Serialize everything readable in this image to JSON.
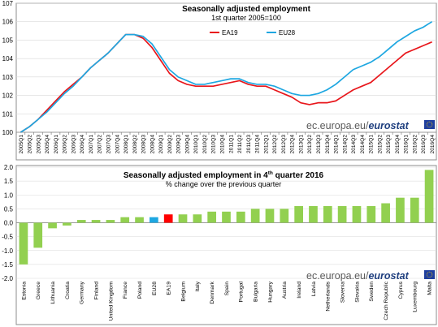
{
  "chart_data": [
    {
      "type": "line",
      "title": "Seasonally adjusted employment",
      "subtitle": "1st quarter 2005=100",
      "ylim": [
        100,
        107
      ],
      "yticks": [
        100,
        101,
        102,
        103,
        104,
        105,
        106,
        107
      ],
      "grid": true,
      "legend_position": "top-right",
      "categories": [
        "2005Q1",
        "2005Q2",
        "2005Q3",
        "2005Q4",
        "2006Q1",
        "2006Q2",
        "2006Q3",
        "2006Q4",
        "2007Q1",
        "2007Q2",
        "2007Q3",
        "2007Q4",
        "2008Q1",
        "2008Q2",
        "2008Q3",
        "2008Q4",
        "2009Q1",
        "2009Q2",
        "2009Q3",
        "2009Q4",
        "2010Q1",
        "2010Q2",
        "2010Q3",
        "2010Q4",
        "2011Q1",
        "2011Q2",
        "2011Q3",
        "2011Q4",
        "2012Q1",
        "2012Q2",
        "2012Q3",
        "2012Q4",
        "2013Q1",
        "2013Q2",
        "2013Q3",
        "2013Q4",
        "2014Q1",
        "2014Q2",
        "2014Q3",
        "2014Q4",
        "2015Q1",
        "2015Q2",
        "2015Q3",
        "2015Q4",
        "2016Q1",
        "2016Q2",
        "2016Q3",
        "2016Q4"
      ],
      "series": [
        {
          "name": "EA19",
          "color": "#e8161b",
          "values": [
            100.0,
            100.3,
            100.7,
            101.2,
            101.7,
            102.2,
            102.6,
            103.0,
            103.5,
            103.9,
            104.3,
            104.8,
            105.3,
            105.3,
            105.1,
            104.6,
            103.9,
            103.2,
            102.8,
            102.6,
            102.5,
            102.5,
            102.5,
            102.6,
            102.7,
            102.8,
            102.6,
            102.5,
            102.5,
            102.3,
            102.1,
            101.9,
            101.6,
            101.5,
            101.6,
            101.6,
            101.7,
            102.0,
            102.3,
            102.5,
            102.7,
            103.1,
            103.5,
            103.9,
            104.3,
            104.5,
            104.7,
            104.9
          ]
        },
        {
          "name": "EU28",
          "color": "#1ea7e1",
          "values": [
            100.0,
            100.3,
            100.7,
            101.1,
            101.6,
            102.1,
            102.5,
            103.0,
            103.5,
            103.9,
            104.3,
            104.8,
            105.3,
            105.3,
            105.2,
            104.8,
            104.1,
            103.4,
            103.0,
            102.8,
            102.6,
            102.6,
            102.7,
            102.8,
            102.9,
            102.9,
            102.7,
            102.6,
            102.6,
            102.5,
            102.3,
            102.1,
            102.0,
            102.0,
            102.1,
            102.3,
            102.6,
            103.0,
            103.4,
            103.6,
            103.8,
            104.1,
            104.5,
            104.9,
            105.2,
            105.5,
            105.7,
            106.0
          ]
        }
      ],
      "watermark": {
        "text": "ec.europa.eu/",
        "bold": "eurostat"
      }
    },
    {
      "type": "bar",
      "title": "Seasonally adjusted employment in 4",
      "title_sup": "th",
      "title_tail": " quarter 2016",
      "subtitle": "% change over the previous quarter",
      "ylim": [
        -2.0,
        2.0
      ],
      "yticks": [
        -2.0,
        -1.5,
        -1.0,
        -0.5,
        0.0,
        0.5,
        1.0,
        1.5,
        2.0
      ],
      "grid": true,
      "categories": [
        "Estonia",
        "Greece",
        "Lithuania",
        "Croatia",
        "Germany",
        "Finland",
        "United Kingdom",
        "France",
        "Poland",
        "EU28",
        "EA19",
        "Belgium",
        "Italy",
        "Denmark",
        "Spain",
        "Portugal",
        "Bulgaria",
        "Hungary",
        "Austria",
        "Ireland",
        "Latvia",
        "Netherlands",
        "Slovenia",
        "Slovakia",
        "Sweden",
        "Czech Republic",
        "Cyprus",
        "Luxembourg",
        "Malta"
      ],
      "values": [
        -1.5,
        -0.9,
        -0.2,
        -0.1,
        0.1,
        0.1,
        0.1,
        0.2,
        0.2,
        0.2,
        0.3,
        0.3,
        0.3,
        0.4,
        0.4,
        0.4,
        0.5,
        0.5,
        0.5,
        0.6,
        0.6,
        0.6,
        0.6,
        0.6,
        0.6,
        0.7,
        0.9,
        0.9,
        1.9
      ],
      "colors": {
        "default": "#92d050",
        "EU28": "#1ea7e1",
        "EA19": "#ff0000"
      },
      "watermark": {
        "text": "ec.europa.eu/",
        "bold": "eurostat"
      }
    }
  ]
}
